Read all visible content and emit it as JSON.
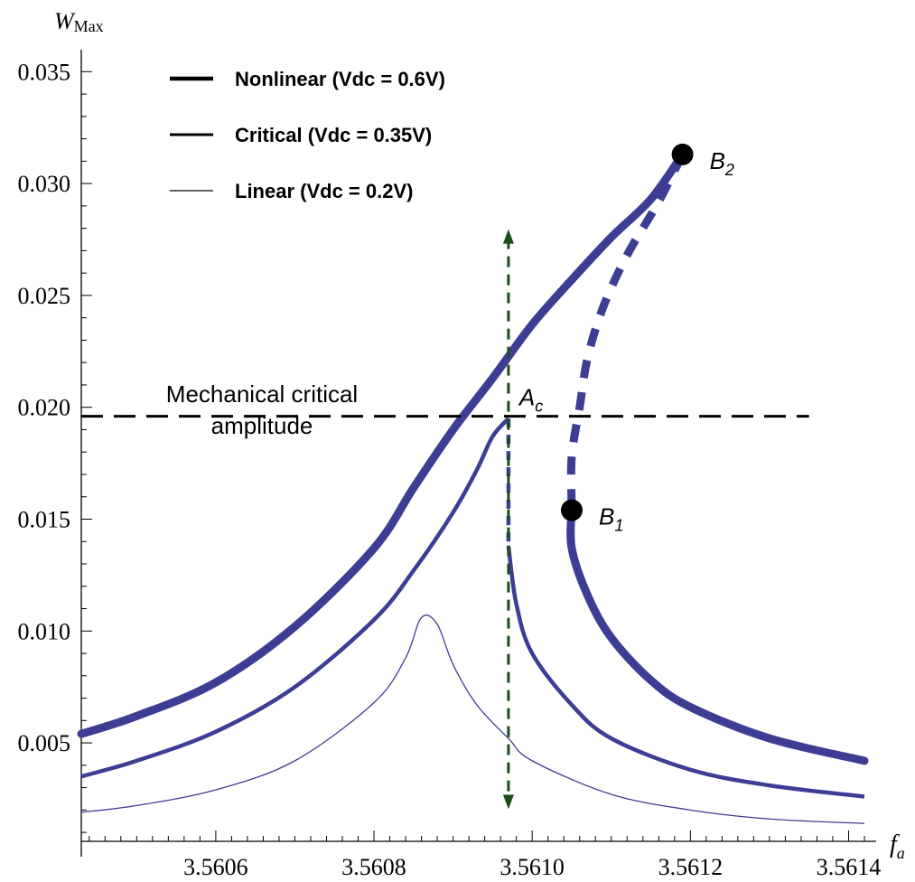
{
  "chart_data": {
    "type": "line",
    "xlabel": {
      "main": "f",
      "sub": "a"
    },
    "ylabel": {
      "main": "W",
      "sub": "Max"
    },
    "xlim": [
      3.56043,
      3.56142
    ],
    "ylim": [
      0.0006,
      0.0357
    ],
    "x_ticks": [
      3.5606,
      3.5608,
      3.561,
      3.5612,
      3.5614
    ],
    "x_tick_labels": [
      "3.5606",
      "3.5608",
      "3.5610",
      "3.5612",
      "3.5614"
    ],
    "y_ticks": [
      0.005,
      0.01,
      0.015,
      0.02,
      0.025,
      0.03,
      0.035
    ],
    "y_tick_labels": [
      "0.005",
      "0.010",
      "0.015",
      "0.020",
      "0.025",
      "0.030",
      "0.035"
    ],
    "grid": false,
    "legend_position": "top-left",
    "legend": [
      {
        "label": "Nonlinear (Vdc =  0.6V)",
        "style": "thick"
      },
      {
        "label": "Critical (Vdc =  0.35V)",
        "style": "medium"
      },
      {
        "label": "Linear (Vdc =  0.2V)",
        "style": "thin"
      }
    ],
    "series_color": "#3d3d94",
    "series": [
      {
        "label": "Nonlinear (Vdc =  0.6V)",
        "width": "thick",
        "stable_upper": [
          [
            3.56043,
            0.0054
          ],
          [
            3.5605,
            0.0062
          ],
          [
            3.5606,
            0.0077
          ],
          [
            3.5607,
            0.0102
          ],
          [
            3.5608,
            0.0137
          ],
          [
            3.56085,
            0.0164
          ],
          [
            3.5609,
            0.019
          ],
          [
            3.56095,
            0.0213
          ],
          [
            3.561,
            0.0237
          ],
          [
            3.56105,
            0.0257
          ],
          [
            3.5611,
            0.0276
          ],
          [
            3.56115,
            0.0293
          ],
          [
            3.56119,
            0.0313
          ]
        ],
        "unstable": [
          [
            3.56119,
            0.0313
          ],
          [
            3.56116,
            0.0292
          ],
          [
            3.56112,
            0.0268
          ],
          [
            3.56109,
            0.0245
          ],
          [
            3.56107,
            0.0222
          ],
          [
            3.56106,
            0.02
          ],
          [
            3.56105,
            0.0178
          ],
          [
            3.56105,
            0.0154
          ]
        ],
        "stable_lower": [
          [
            3.56105,
            0.0154
          ],
          [
            3.56105,
            0.0137
          ],
          [
            3.56107,
            0.0116
          ],
          [
            3.5611,
            0.0097
          ],
          [
            3.56115,
            0.0078
          ],
          [
            3.5612,
            0.0066
          ],
          [
            3.5613,
            0.0052
          ],
          [
            3.56142,
            0.0042
          ]
        ]
      },
      {
        "label": "Critical (Vdc =  0.35V)",
        "width": "medium",
        "upper": [
          [
            3.56043,
            0.0035
          ],
          [
            3.5605,
            0.0042
          ],
          [
            3.5606,
            0.0055
          ],
          [
            3.5607,
            0.0075
          ],
          [
            3.5608,
            0.0105
          ],
          [
            3.56085,
            0.0127
          ],
          [
            3.5609,
            0.0153
          ],
          [
            3.56093,
            0.0172
          ],
          [
            3.56095,
            0.0187
          ],
          [
            3.56097,
            0.0195
          ]
        ],
        "unstable": [
          [
            3.56097,
            0.0195
          ],
          [
            3.56097,
            0.0175
          ],
          [
            3.56097,
            0.0155
          ],
          [
            3.56097,
            0.0138
          ]
        ],
        "lower": [
          [
            3.56097,
            0.0138
          ],
          [
            3.56098,
            0.0112
          ],
          [
            3.561,
            0.009
          ],
          [
            3.56105,
            0.0067
          ],
          [
            3.5611,
            0.0052
          ],
          [
            3.5612,
            0.0038
          ],
          [
            3.5613,
            0.0031
          ],
          [
            3.56142,
            0.0026
          ]
        ]
      },
      {
        "label": "Linear (Vdc =  0.2V)",
        "width": "thin",
        "points": [
          [
            3.56043,
            0.0019
          ],
          [
            3.5605,
            0.0022
          ],
          [
            3.5606,
            0.0029
          ],
          [
            3.5607,
            0.0042
          ],
          [
            3.5608,
            0.0068
          ],
          [
            3.56084,
            0.0088
          ],
          [
            3.56086,
            0.0106
          ],
          [
            3.56088,
            0.0103
          ],
          [
            3.5609,
            0.0085
          ],
          [
            3.56093,
            0.0067
          ],
          [
            3.56097,
            0.0052
          ],
          [
            3.561,
            0.0042
          ],
          [
            3.5611,
            0.0027
          ],
          [
            3.5612,
            0.002
          ],
          [
            3.5613,
            0.0016
          ],
          [
            3.56142,
            0.0014
          ]
        ]
      }
    ],
    "critical_amplitude_line": {
      "y": 0.0196,
      "x_from": 3.56043,
      "x_to": 3.56135
    },
    "critical_amplitude_label": [
      "Mechanical critical",
      "amplitude"
    ],
    "jump_arrow": {
      "x": 3.56097,
      "y_from": 0.0022,
      "y_to": 0.0278,
      "color": "#1a4d1a"
    },
    "points": [
      {
        "name": "B1",
        "main": "B",
        "sub": "1",
        "x": 3.56105,
        "y": 0.0154
      },
      {
        "name": "B2",
        "main": "B",
        "sub": "2",
        "x": 3.56119,
        "y": 0.0313
      }
    ],
    "annotation": {
      "main": "A",
      "sub": "c",
      "x": 3.56097,
      "y": 0.0196
    }
  }
}
